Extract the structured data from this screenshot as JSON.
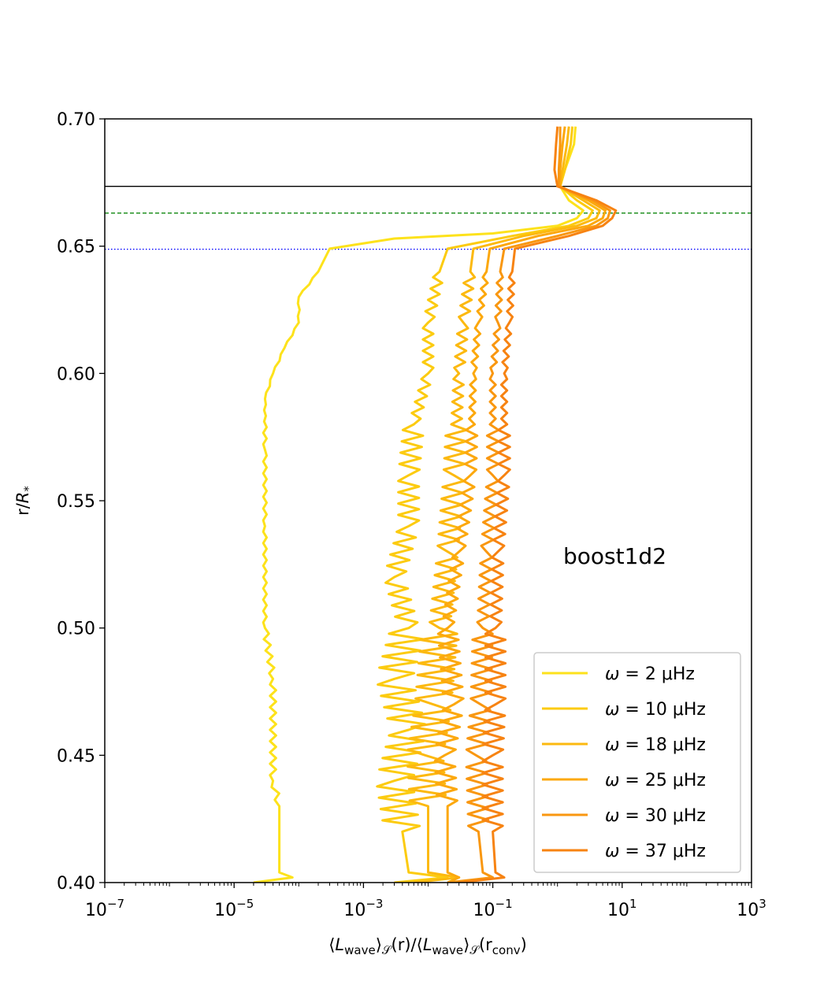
{
  "chart_data": {
    "type": "line",
    "title": "",
    "annotation": "boost1d2",
    "xlabel": {
      "open": "⟨",
      "L1": "L",
      "sub1": "wave",
      "close1": "⟩",
      "S1": "𝒮",
      "mid": "(r)/⟨",
      "L2": "L",
      "sub2": "wave",
      "close2": "⟩",
      "S2": "𝒮",
      "arg_open": "(r",
      "arg_sub": "conv",
      "arg_close": ")"
    },
    "ylabel": {
      "prefix": "r/",
      "R": "R",
      "sub": "*"
    },
    "xscale": "log",
    "xlim": [
      1e-07,
      1000
    ],
    "ylim": [
      0.4,
      0.7
    ],
    "x_ticks": [
      {
        "value": 1e-07,
        "base": "10",
        "exp": "−7"
      },
      {
        "value": 1e-05,
        "base": "10",
        "exp": "−5"
      },
      {
        "value": 0.001,
        "base": "10",
        "exp": "−3"
      },
      {
        "value": 0.1,
        "base": "10",
        "exp": "−1"
      },
      {
        "value": 10,
        "base": "10",
        "exp": "1"
      },
      {
        "value": 1000,
        "base": "10",
        "exp": "3"
      }
    ],
    "y_ticks": [
      {
        "value": 0.4,
        "label": "0.40"
      },
      {
        "value": 0.45,
        "label": "0.45"
      },
      {
        "value": 0.5,
        "label": "0.50"
      },
      {
        "value": 0.55,
        "label": "0.55"
      },
      {
        "value": 0.6,
        "label": "0.60"
      },
      {
        "value": 0.65,
        "label": "0.65"
      },
      {
        "value": 0.7,
        "label": "0.70"
      }
    ],
    "hlines": [
      {
        "y": 0.6735,
        "color": "#000000",
        "style": "solid"
      },
      {
        "y": 0.663,
        "color": "#008000",
        "style": "dashed"
      },
      {
        "y": 0.6488,
        "color": "#0000ff",
        "style": "dotted"
      }
    ],
    "legend_position": "lower-right",
    "grid": false,
    "series": [
      {
        "omega": "2",
        "unit": "μHz",
        "color": "#fde21b",
        "points": [
          [
            2e-05,
            0.4
          ],
          [
            8e-05,
            0.402
          ],
          [
            5e-05,
            0.404
          ],
          [
            5e-05,
            0.43
          ],
          [
            4e-05,
            0.44
          ],
          [
            4e-05,
            0.48
          ],
          [
            3e-05,
            0.5
          ],
          [
            3e-05,
            0.54
          ],
          [
            3e-05,
            0.57
          ],
          [
            3e-05,
            0.59
          ],
          [
            4e-05,
            0.6
          ],
          [
            6e-05,
            0.61
          ],
          [
            0.0001,
            0.62
          ],
          [
            0.0001,
            0.63
          ],
          [
            0.0002,
            0.64
          ],
          [
            0.0003,
            0.649
          ],
          [
            0.003,
            0.653
          ],
          [
            0.1,
            0.655
          ],
          [
            1,
            0.658
          ],
          [
            2,
            0.661
          ],
          [
            2.5,
            0.664
          ],
          [
            1.5,
            0.668
          ],
          [
            1.1,
            0.6735
          ],
          [
            1.3,
            0.68
          ],
          [
            1.8,
            0.69
          ],
          [
            1.9,
            0.697
          ]
        ]
      },
      {
        "omega": "10",
        "unit": "μHz",
        "color": "#fccb10",
        "points": [
          [
            0.003,
            0.4
          ],
          [
            0.02,
            0.402
          ],
          [
            0.005,
            0.404
          ],
          [
            0.004,
            0.42
          ],
          [
            0.003,
            0.44
          ],
          [
            0.005,
            0.46
          ],
          [
            0.003,
            0.48
          ],
          [
            0.005,
            0.5
          ],
          [
            0.003,
            0.52
          ],
          [
            0.005,
            0.54
          ],
          [
            0.005,
            0.56
          ],
          [
            0.006,
            0.58
          ],
          [
            0.01,
            0.6
          ],
          [
            0.01,
            0.62
          ],
          [
            0.015,
            0.64
          ],
          [
            0.02,
            0.649
          ],
          [
            0.2,
            0.654
          ],
          [
            1.5,
            0.658
          ],
          [
            3,
            0.661
          ],
          [
            3.5,
            0.664
          ],
          [
            2,
            0.668
          ],
          [
            1.1,
            0.6735
          ],
          [
            1.3,
            0.68
          ],
          [
            1.6,
            0.69
          ],
          [
            1.7,
            0.697
          ]
        ]
      },
      {
        "omega": "18",
        "unit": "μHz",
        "color": "#fcb90f",
        "points": [
          [
            0.006,
            0.4
          ],
          [
            0.03,
            0.402
          ],
          [
            0.01,
            0.404
          ],
          [
            0.01,
            0.43
          ],
          [
            0.009,
            0.45
          ],
          [
            0.012,
            0.47
          ],
          [
            0.015,
            0.5
          ],
          [
            0.02,
            0.53
          ],
          [
            0.025,
            0.56
          ],
          [
            0.03,
            0.6
          ],
          [
            0.035,
            0.62
          ],
          [
            0.045,
            0.64
          ],
          [
            0.05,
            0.649
          ],
          [
            0.3,
            0.654
          ],
          [
            2,
            0.658
          ],
          [
            4,
            0.661
          ],
          [
            4.5,
            0.664
          ],
          [
            2.5,
            0.668
          ],
          [
            1.1,
            0.6735
          ],
          [
            1.2,
            0.68
          ],
          [
            1.4,
            0.69
          ],
          [
            1.5,
            0.697
          ]
        ]
      },
      {
        "omega": "25",
        "unit": "μHz",
        "color": "#fca80d",
        "points": [
          [
            0.02,
            0.4
          ],
          [
            0.03,
            0.402
          ],
          [
            0.02,
            0.404
          ],
          [
            0.02,
            0.43
          ],
          [
            0.018,
            0.45
          ],
          [
            0.025,
            0.47
          ],
          [
            0.02,
            0.5
          ],
          [
            0.03,
            0.53
          ],
          [
            0.045,
            0.56
          ],
          [
            0.05,
            0.6
          ],
          [
            0.06,
            0.62
          ],
          [
            0.08,
            0.64
          ],
          [
            0.09,
            0.649
          ],
          [
            0.5,
            0.654
          ],
          [
            3,
            0.658
          ],
          [
            5,
            0.661
          ],
          [
            5.5,
            0.664
          ],
          [
            3,
            0.668
          ],
          [
            1.1,
            0.6735
          ],
          [
            1.1,
            0.68
          ],
          [
            1.2,
            0.69
          ],
          [
            1.3,
            0.697
          ]
        ]
      },
      {
        "omega": "30",
        "unit": "μHz",
        "color": "#f99710",
        "points": [
          [
            0.02,
            0.4
          ],
          [
            0.1,
            0.402
          ],
          [
            0.07,
            0.404
          ],
          [
            0.06,
            0.42
          ],
          [
            0.055,
            0.45
          ],
          [
            0.065,
            0.47
          ],
          [
            0.07,
            0.5
          ],
          [
            0.08,
            0.53
          ],
          [
            0.1,
            0.56
          ],
          [
            0.1,
            0.6
          ],
          [
            0.12,
            0.62
          ],
          [
            0.13,
            0.64
          ],
          [
            0.15,
            0.649
          ],
          [
            1,
            0.654
          ],
          [
            4,
            0.658
          ],
          [
            6,
            0.661
          ],
          [
            6.5,
            0.664
          ],
          [
            3.5,
            0.668
          ],
          [
            1.05,
            0.6735
          ],
          [
            1.05,
            0.68
          ],
          [
            1.1,
            0.69
          ],
          [
            1.1,
            0.697
          ]
        ]
      },
      {
        "omega": "37",
        "unit": "μHz",
        "color": "#f78312",
        "points": [
          [
            0.03,
            0.4
          ],
          [
            0.15,
            0.402
          ],
          [
            0.11,
            0.404
          ],
          [
            0.1,
            0.42
          ],
          [
            0.1,
            0.45
          ],
          [
            0.11,
            0.47
          ],
          [
            0.11,
            0.5
          ],
          [
            0.12,
            0.53
          ],
          [
            0.15,
            0.56
          ],
          [
            0.15,
            0.6
          ],
          [
            0.18,
            0.62
          ],
          [
            0.2,
            0.64
          ],
          [
            0.22,
            0.649
          ],
          [
            1.5,
            0.654
          ],
          [
            5,
            0.658
          ],
          [
            7,
            0.661
          ],
          [
            8,
            0.664
          ],
          [
            4,
            0.668
          ],
          [
            1,
            0.6735
          ],
          [
            0.9,
            0.68
          ],
          [
            0.95,
            0.69
          ],
          [
            1,
            0.697
          ]
        ]
      }
    ]
  }
}
